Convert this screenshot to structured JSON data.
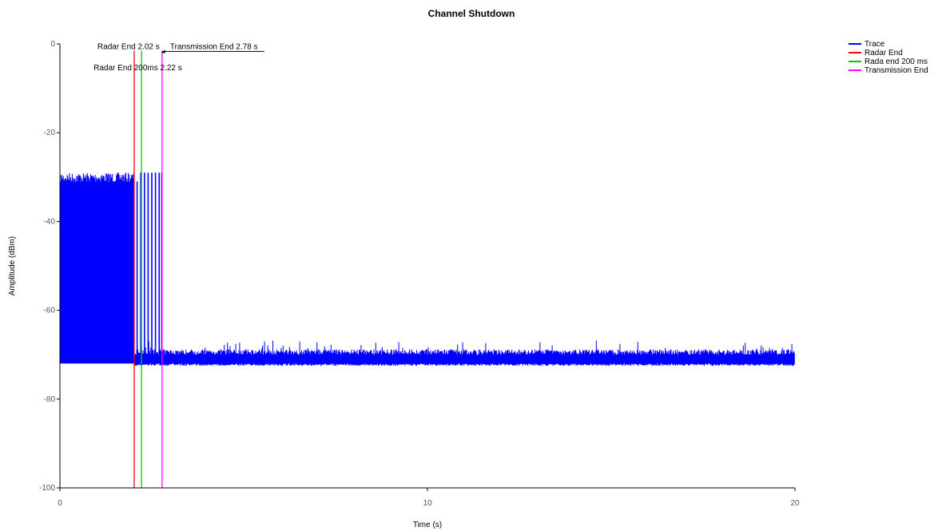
{
  "chart_data": {
    "type": "line",
    "title": "Channel Shutdown",
    "xlabel": "Time (s)",
    "ylabel": "Amplitude (dBm)",
    "xlim": [
      0,
      20
    ],
    "ylim": [
      -100,
      0
    ],
    "xticks": [
      0,
      10,
      20
    ],
    "yticks": [
      0,
      -20,
      -40,
      -60,
      -80,
      -100
    ],
    "grid": false,
    "legend_position": "top-right",
    "series": [
      {
        "name": "Trace",
        "color": "#0000ff",
        "description_regions": [
          {
            "x_start": 0.0,
            "x_end": 2.02,
            "y_min": -72,
            "y_max": -29
          },
          {
            "x_start": 2.02,
            "x_end": 2.78,
            "y_min": -72,
            "y_max": -70,
            "burst_top": -29
          },
          {
            "x_start": 2.78,
            "x_end": 20.0,
            "y_min": -72,
            "y_max": -70
          }
        ],
        "burst_x": [
          2.1,
          2.2,
          2.3,
          2.4,
          2.5,
          2.6,
          2.7,
          2.77
        ]
      },
      {
        "name": "Radar End",
        "color": "#ff0000",
        "x": 2.02
      },
      {
        "name": "Rada end 200 ms",
        "color": "#00cc00",
        "x": 2.22
      },
      {
        "name": "Transmission End",
        "color": "#ff00ff",
        "x": 2.78
      }
    ],
    "annotations": [
      {
        "text": "Radar End 2.02 s",
        "x": 2.02,
        "y": -1.5
      },
      {
        "text": "Transmission End 2.78 s",
        "x": 2.78,
        "y": -1.5
      },
      {
        "text": "Radar End 200ms 2.22 s",
        "x": 2.22,
        "y": -5
      }
    ]
  }
}
